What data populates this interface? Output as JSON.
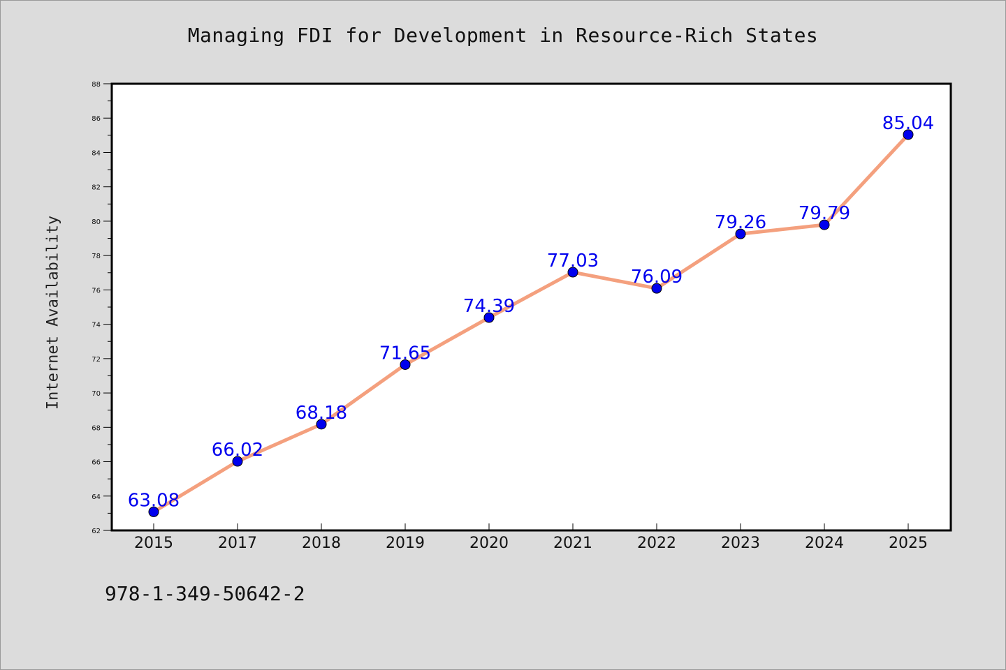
{
  "chart_data": {
    "type": "line",
    "title": "Managing FDI for Development in Resource-Rich States",
    "ylabel": "Internet Availability",
    "xlabel": "",
    "categories": [
      "2015",
      "2017",
      "2018",
      "2019",
      "2020",
      "2021",
      "2022",
      "2023",
      "2024",
      "2025"
    ],
    "values": [
      63.08,
      66.02,
      68.18,
      71.65,
      74.39,
      77.03,
      76.09,
      79.26,
      79.79,
      85.04
    ],
    "data_labels": [
      "63.08",
      "66.02",
      "68.18",
      "71.65",
      "74.39",
      "77.03",
      "76.09",
      "79.26",
      "79.79",
      "85.04"
    ],
    "ylim": [
      62,
      88
    ],
    "yticks": [
      "62",
      "64",
      "66",
      "68",
      "70",
      "72",
      "74",
      "76",
      "78",
      "80",
      "82",
      "84",
      "86",
      "88"
    ],
    "grid": false,
    "legend": "none",
    "line_color": "#f4a07e",
    "marker_color": "#0000ee",
    "label_color": "#0000ee"
  },
  "footnote": "978-1-349-50642-2"
}
